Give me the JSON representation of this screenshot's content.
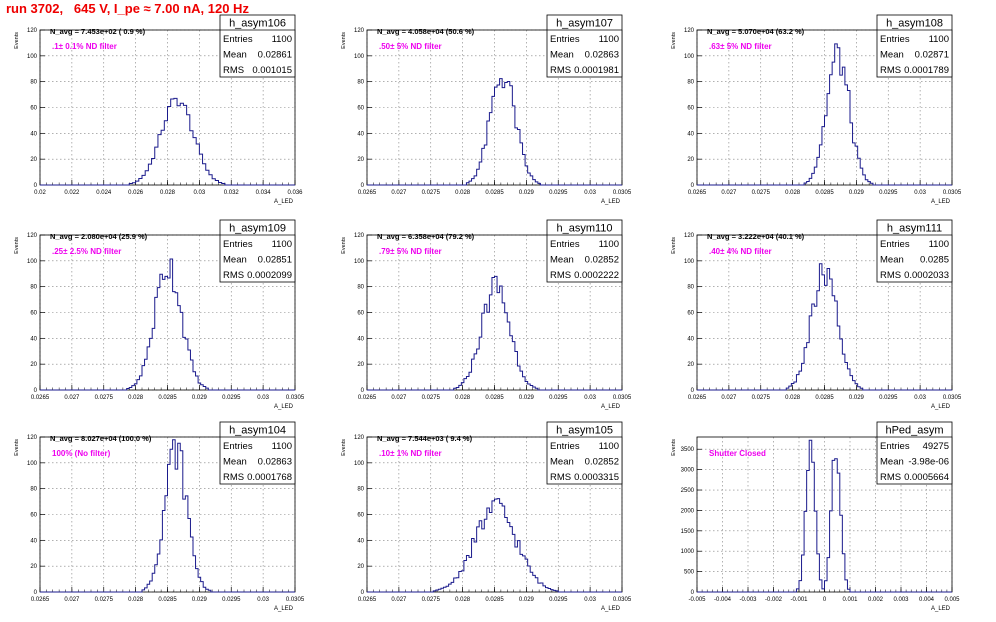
{
  "title": "run 3702,   645 V, I_pe ≈ 7.00 nA, 120 Hz",
  "colors": {
    "histogram_line": "#1a1a8c",
    "title_red": "#ee0000",
    "annotation_magenta": "#ee00ee",
    "grid": "#808080"
  },
  "stat_labels": {
    "entries": "Entries",
    "mean": "Mean",
    "rms": "RMS"
  },
  "chart_data": [
    {
      "type": "histogram",
      "name": "h_asym106",
      "ylabel": "Events",
      "xlabel": "A_LED",
      "xlim": [
        0.02,
        0.036
      ],
      "ylim": [
        0,
        120
      ],
      "xticks": [
        "0.02",
        "0.022",
        "0.024",
        "0.026",
        "0.028",
        "0.03",
        "0.032",
        "0.034",
        "0.036"
      ],
      "yticks": [
        "0",
        "20",
        "40",
        "60",
        "80",
        "100",
        "120"
      ],
      "navg": "N_avg = 7.453e+02 ( 0.9 %)",
      "filter": ".1± 0.1% ND filter",
      "stats": {
        "entries": "1100",
        "mean": "0.02861",
        "rms": "0.001015"
      },
      "histogram": {
        "mean": 0.02861,
        "rms": 0.001015,
        "peak": 66,
        "bin_width": 0.0002,
        "modulation": 0.08
      }
    },
    {
      "type": "histogram",
      "name": "h_asym107",
      "ylabel": "Events",
      "xlabel": "A_LED",
      "xlim": [
        0.0265,
        0.0305
      ],
      "ylim": [
        0,
        120
      ],
      "xticks": [
        "0.0265",
        "0.027",
        "0.0275",
        "0.028",
        "0.0285",
        "0.029",
        "0.0295",
        "0.03",
        "0.0305"
      ],
      "yticks": [
        "0",
        "20",
        "40",
        "60",
        "80",
        "100",
        "120"
      ],
      "navg": "N_avg = 4.058e+04 (50.6 %)",
      "filter": ".50± 5% ND filter",
      "stats": {
        "entries": "1100",
        "mean": "0.02863",
        "rms": "0.0001981"
      },
      "histogram": {
        "mean": 0.02863,
        "rms": 0.0001981,
        "peak": 85,
        "bin_width": 4e-05,
        "modulation": 0.15
      }
    },
    {
      "type": "histogram",
      "name": "h_asym108",
      "ylabel": "Events",
      "xlabel": "A_LED",
      "xlim": [
        0.0265,
        0.0305
      ],
      "ylim": [
        0,
        120
      ],
      "xticks": [
        "0.0265",
        "0.027",
        "0.0275",
        "0.028",
        "0.0285",
        "0.029",
        "0.0295",
        "0.03",
        "0.0305"
      ],
      "yticks": [
        "0",
        "20",
        "40",
        "60",
        "80",
        "100",
        "120"
      ],
      "navg": "N_avg = 5.070e+04 (63.2 %)",
      "filter": ".63± 5% ND filter",
      "stats": {
        "entries": "1100",
        "mean": "0.02871",
        "rms": "0.0001789"
      },
      "histogram": {
        "mean": 0.02871,
        "rms": 0.0001789,
        "peak": 100,
        "bin_width": 4e-05,
        "modulation": 0.15
      }
    },
    {
      "type": "histogram",
      "name": "h_asym109",
      "ylabel": "Events",
      "xlabel": "A_LED",
      "xlim": [
        0.0265,
        0.0305
      ],
      "ylim": [
        0,
        120
      ],
      "xticks": [
        "0.0265",
        "0.027",
        "0.0275",
        "0.028",
        "0.0285",
        "0.029",
        "0.0295",
        "0.03",
        "0.0305"
      ],
      "yticks": [
        "0",
        "20",
        "40",
        "60",
        "80",
        "100",
        "120"
      ],
      "navg": "N_avg = 2.080e+04 (25.9 %)",
      "filter": ".25± 2.5% ND filter",
      "stats": {
        "entries": "1100",
        "mean": "0.02851",
        "rms": "0.0002099"
      },
      "histogram": {
        "mean": 0.02851,
        "rms": 0.0002099,
        "peak": 97,
        "bin_width": 4e-05,
        "modulation": 0.15
      }
    },
    {
      "type": "histogram",
      "name": "h_asym110",
      "ylabel": "Events",
      "xlabel": "A_LED",
      "xlim": [
        0.0265,
        0.0305
      ],
      "ylim": [
        0,
        120
      ],
      "xticks": [
        "0.0265",
        "0.027",
        "0.0275",
        "0.028",
        "0.0285",
        "0.029",
        "0.0295",
        "0.03",
        "0.0305"
      ],
      "yticks": [
        "0",
        "20",
        "40",
        "60",
        "80",
        "100",
        "120"
      ],
      "navg": "N_avg = 6.358e+04 (79.2 %)",
      "filter": ".79± 5% ND filter",
      "stats": {
        "entries": "1100",
        "mean": "0.02852",
        "rms": "0.0002222"
      },
      "histogram": {
        "mean": 0.02852,
        "rms": 0.0002222,
        "peak": 80,
        "bin_width": 4e-05,
        "modulation": 0.15
      }
    },
    {
      "type": "histogram",
      "name": "h_asym111",
      "ylabel": "Events",
      "xlabel": "A_LED",
      "xlim": [
        0.0265,
        0.0305
      ],
      "ylim": [
        0,
        120
      ],
      "xticks": [
        "0.0265",
        "0.027",
        "0.0275",
        "0.028",
        "0.0285",
        "0.029",
        "0.0295",
        "0.03",
        "0.0305"
      ],
      "yticks": [
        "0",
        "20",
        "40",
        "60",
        "80",
        "100",
        "120"
      ],
      "navg": "N_avg = 3.222e+04 (40.1 %)",
      "filter": ".40± 4% ND filter",
      "stats": {
        "entries": "1100",
        "mean": "0.0285",
        "rms": "0.0002033"
      },
      "histogram": {
        "mean": 0.0285,
        "rms": 0.0002033,
        "peak": 90,
        "bin_width": 4e-05,
        "modulation": 0.15
      }
    },
    {
      "type": "histogram",
      "name": "h_asym104",
      "ylabel": "Events",
      "xlabel": "A_LED",
      "xlim": [
        0.0265,
        0.0305
      ],
      "ylim": [
        0,
        120
      ],
      "xticks": [
        "0.0265",
        "0.027",
        "0.0275",
        "0.028",
        "0.0285",
        "0.029",
        "0.0295",
        "0.03",
        "0.0305"
      ],
      "yticks": [
        "0",
        "20",
        "40",
        "60",
        "80",
        "100",
        "120"
      ],
      "navg": "N_avg = 8.027e+04 (100.0 %)",
      "filter": "100% (No filter)",
      "stats": {
        "entries": "1100",
        "mean": "0.02863",
        "rms": "0.0001768"
      },
      "histogram": {
        "mean": 0.02863,
        "rms": 0.0001768,
        "peak": 110,
        "bin_width": 4e-05,
        "modulation": 0.15
      }
    },
    {
      "type": "histogram",
      "name": "h_asym105",
      "ylabel": "Events",
      "xlabel": "A_LED",
      "xlim": [
        0.0265,
        0.0305
      ],
      "ylim": [
        0,
        120
      ],
      "xticks": [
        "0.0265",
        "0.027",
        "0.0275",
        "0.028",
        "0.0285",
        "0.029",
        "0.0295",
        "0.03",
        "0.0305"
      ],
      "yticks": [
        "0",
        "20",
        "40",
        "60",
        "80",
        "100",
        "120"
      ],
      "navg": "N_avg = 7.544e+03 ( 9.4 %)",
      "filter": ".10± 1% ND filter",
      "stats": {
        "entries": "1100",
        "mean": "0.02852",
        "rms": "0.0003315"
      },
      "histogram": {
        "mean": 0.02852,
        "rms": 0.0003315,
        "peak": 65,
        "bin_width": 4e-05,
        "modulation": 0.15
      }
    },
    {
      "type": "histogram",
      "name": "hPed_asym",
      "ylabel": "Events",
      "xlabel": "A_LED",
      "xlim": [
        -0.005,
        0.005
      ],
      "ylim": [
        0,
        3800
      ],
      "xticks": [
        "-0.005",
        "-0.004",
        "-0.003",
        "-0.002",
        "-0.001",
        "0",
        "0.001",
        "0.002",
        "0.003",
        "0.004",
        "0.005"
      ],
      "yticks": [
        "0",
        "500",
        "1000",
        "1500",
        "2000",
        "2500",
        "3000",
        "3500"
      ],
      "navg": "",
      "filter": "Shutter Closed",
      "stats": {
        "entries": "49275",
        "mean": "-3.98e-06",
        "rms": "0.0005664"
      },
      "histogram": {
        "bimodal": true,
        "centers": [
          -0.00055,
          0.00045
        ],
        "sigma": 0.00018,
        "peak": 3500,
        "bin_width": 0.0001,
        "modulation": 0.08
      }
    }
  ]
}
